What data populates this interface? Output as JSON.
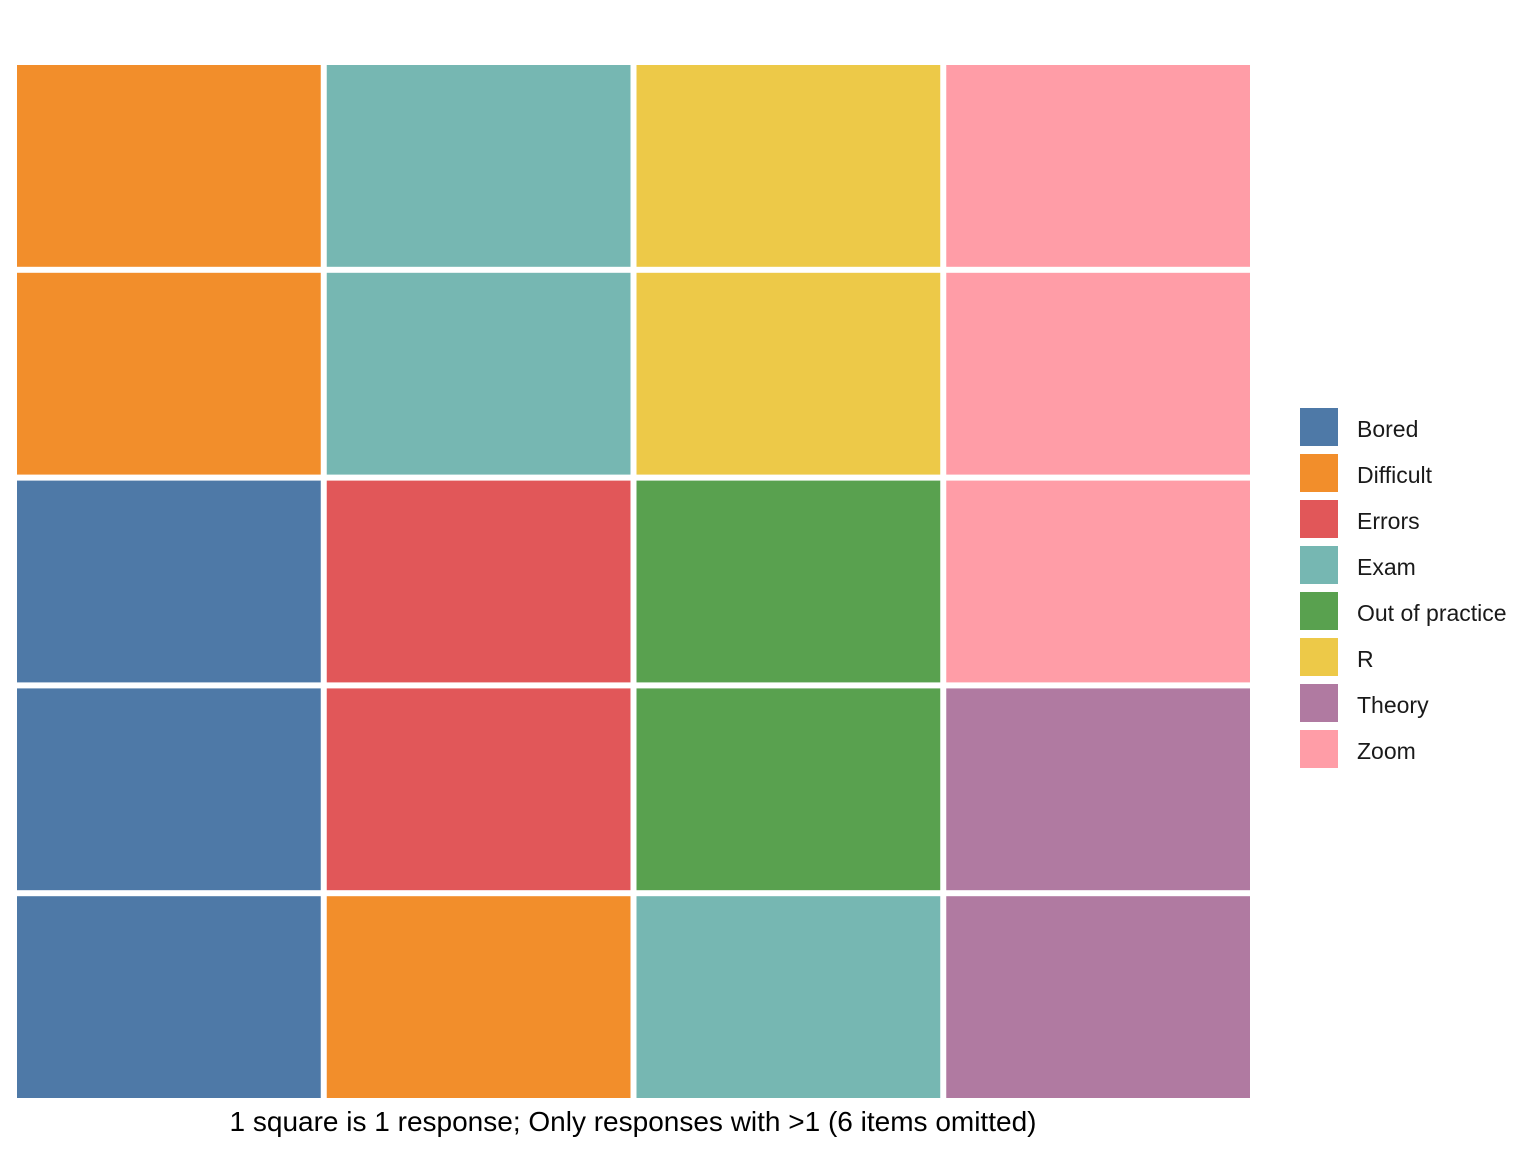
{
  "chart_data": {
    "type": "waffle",
    "caption": "1 square is 1 response; Only responses with >1 (6 items omitted)",
    "grid": {
      "rows": 5,
      "columns": 4,
      "fill_order": "column-wise from bottom-left"
    },
    "categories": [
      "Bored",
      "Difficult",
      "Errors",
      "Exam",
      "Out of practice",
      "R",
      "Theory",
      "Zoom"
    ],
    "values": [
      3,
      3,
      2,
      3,
      2,
      2,
      2,
      3
    ],
    "colors": [
      "#4e79a7",
      "#f28e2b",
      "#e15759",
      "#76b7b2",
      "#59a14f",
      "#edc948",
      "#b07aa1",
      "#ff9da7"
    ],
    "legend": {
      "position": "right"
    },
    "grid_lines": false
  }
}
